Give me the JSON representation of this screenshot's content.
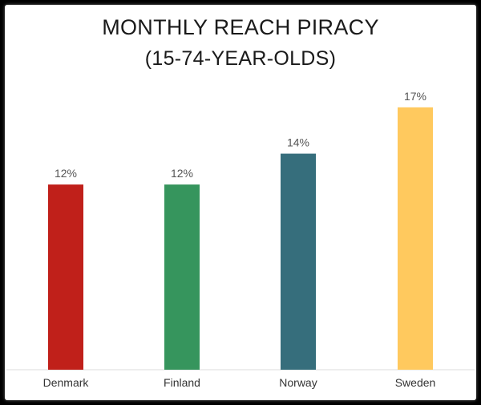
{
  "chart_data": {
    "type": "bar",
    "title": "MONTHLY REACH PIRACY",
    "subtitle": "(15-74-YEAR-OLDS)",
    "categories": [
      "Denmark",
      "Finland",
      "Norway",
      "Sweden"
    ],
    "values": [
      12,
      12,
      14,
      17
    ],
    "data_labels": [
      "12%",
      "12%",
      "14%",
      "17%"
    ],
    "colors": [
      "#c0201a",
      "#36955d",
      "#366e7c",
      "#ffc95e"
    ],
    "ylim": [
      0,
      17.2
    ],
    "unit": "%",
    "grid": false,
    "legend": "none",
    "xlabel": "",
    "ylabel": ""
  }
}
